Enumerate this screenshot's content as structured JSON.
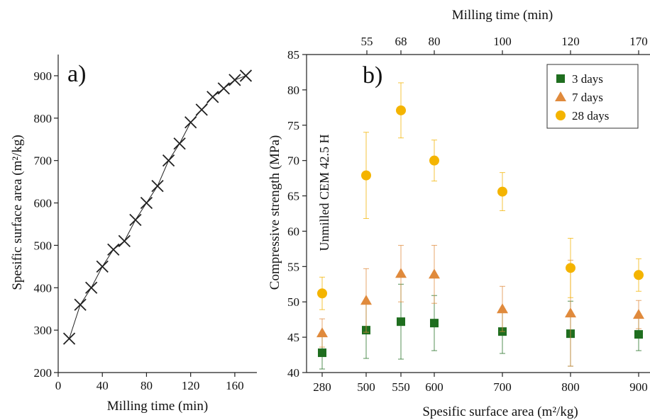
{
  "chart_data": [
    {
      "type": "line",
      "panel_label": "a)",
      "xlabel": "Milling time (min)",
      "ylabel": "Spesific surface area (m²/kg)",
      "xlim": [
        0,
        180
      ],
      "ylim": [
        200,
        950
      ],
      "xticks": [
        0,
        40,
        80,
        120,
        160
      ],
      "yticks": [
        200,
        300,
        400,
        500,
        600,
        700,
        800,
        900
      ],
      "marker": "x",
      "x": [
        10,
        20,
        30,
        40,
        50,
        60,
        70,
        80,
        90,
        100,
        110,
        120,
        130,
        140,
        150,
        160,
        170
      ],
      "y": [
        280,
        360,
        400,
        450,
        490,
        510,
        560,
        600,
        640,
        700,
        740,
        790,
        820,
        850,
        870,
        890,
        900
      ]
    },
    {
      "type": "scatter",
      "panel_label": "b)",
      "xlabel": "Spesific surface area (m²/kg)",
      "ylabel": "Compressive strength (MPa)",
      "top_xlabel": "Milling time (min)",
      "categories": [
        "280",
        "500",
        "550",
        "600",
        "700",
        "800",
        "900"
      ],
      "top_ticks": [
        "55",
        "68",
        "80",
        "100",
        "120",
        "170"
      ],
      "ylim": [
        40,
        85
      ],
      "yticks": [
        40,
        45,
        50,
        55,
        60,
        65,
        70,
        75,
        80,
        85
      ],
      "annotation": "Unmilled CEM 42.5 H",
      "legend_position": "top-right",
      "series": [
        {
          "name": "3 days",
          "marker": "square",
          "color": "#1f6e1f",
          "values": [
            42.8,
            46.0,
            47.2,
            47.0,
            45.8,
            45.5,
            45.4
          ],
          "errors": [
            2.3,
            4.0,
            5.3,
            3.9,
            3.1,
            4.6,
            2.3
          ]
        },
        {
          "name": "7 days",
          "marker": "triangle",
          "color": "#e08a3c",
          "values": [
            45.6,
            50.2,
            54.0,
            53.9,
            49.0,
            48.4,
            48.2
          ],
          "errors": [
            2.0,
            4.5,
            4.0,
            4.1,
            3.2,
            7.5,
            2.0
          ]
        },
        {
          "name": "28 days",
          "marker": "circle",
          "color": "#f4b400",
          "values": [
            51.2,
            67.9,
            77.1,
            70.0,
            65.6,
            54.8,
            53.8
          ],
          "errors": [
            2.3,
            6.1,
            3.9,
            2.9,
            2.7,
            4.2,
            2.3
          ]
        }
      ]
    }
  ]
}
